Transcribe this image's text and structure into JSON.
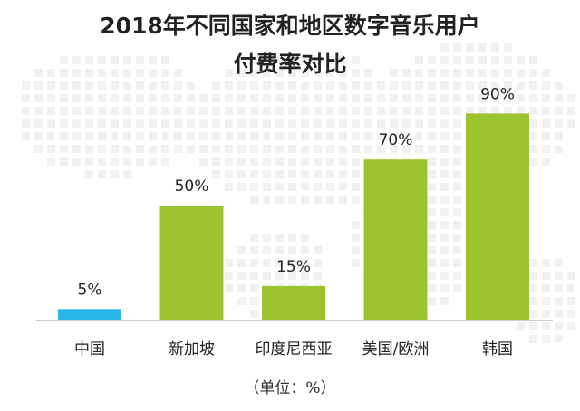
{
  "chart_data": {
    "type": "bar",
    "title_line1": "2018年不同国家和地区数字音乐用户",
    "title_line2": "付费率对比",
    "categories": [
      "中国",
      "新加坡",
      "印度尼西亚",
      "美国/欧洲",
      "韩国"
    ],
    "values": [
      5,
      50,
      15,
      70,
      90
    ],
    "value_labels": [
      "5%",
      "50%",
      "15%",
      "70%",
      "90%"
    ],
    "ylim": [
      0,
      100
    ],
    "grid": false,
    "colors": [
      "#29b6e6",
      "#9cc42f",
      "#9cc42f",
      "#9cc42f",
      "#9cc42f"
    ],
    "unit_note": "（单位：%）"
  }
}
